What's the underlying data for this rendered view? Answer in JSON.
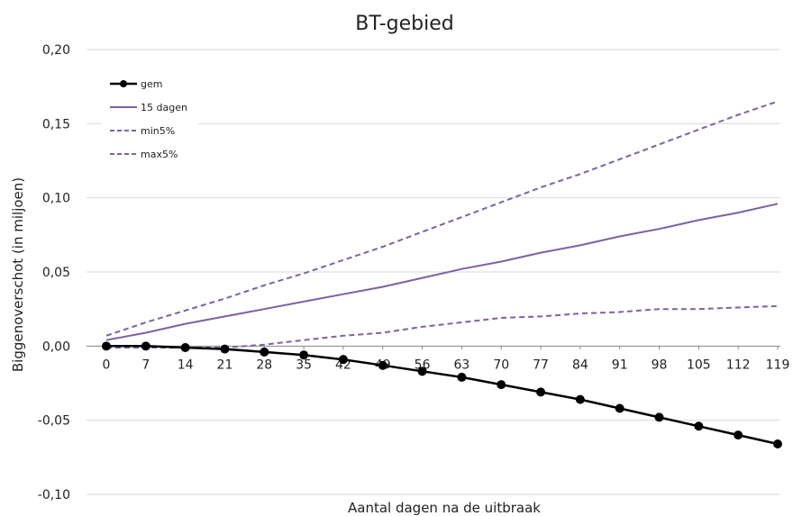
{
  "chart_data": {
    "type": "line",
    "title": "BT-gebied",
    "xlabel": "Aantal dagen na de uitbraak",
    "ylabel": "Biggenoverschot (in miljoen)",
    "x": [
      0,
      7,
      14,
      21,
      28,
      35,
      42,
      49,
      56,
      63,
      70,
      77,
      84,
      91,
      98,
      105,
      112,
      119
    ],
    "x_tick_labels": [
      "0",
      "7",
      "14",
      "21",
      "28",
      "35",
      "42",
      "49",
      "56",
      "63",
      "70",
      "77",
      "84",
      "91",
      "98",
      "105",
      "112",
      "119"
    ],
    "y_tick_labels": [
      "0,20",
      "0,15",
      "0,10",
      "0,05",
      "0,00",
      "-0,05",
      "-0,10"
    ],
    "y_ticks": [
      0.2,
      0.15,
      0.1,
      0.05,
      0.0,
      -0.05,
      -0.1
    ],
    "ylim": [
      -0.1,
      0.2
    ],
    "xlim": [
      0,
      119
    ],
    "grid": "horizontal",
    "legend_position": "top-left",
    "series": [
      {
        "name": "gem",
        "color": "#000000",
        "style": "solid-markers",
        "values": [
          0.0,
          0.0,
          -0.001,
          -0.002,
          -0.004,
          -0.006,
          -0.009,
          -0.013,
          -0.017,
          -0.021,
          -0.026,
          -0.031,
          -0.036,
          -0.042,
          -0.048,
          -0.054,
          -0.06,
          -0.066
        ]
      },
      {
        "name": "15 dagen",
        "color": "#7b62a3",
        "style": "solid",
        "values": [
          0.004,
          0.009,
          0.015,
          0.02,
          0.025,
          0.03,
          0.035,
          0.04,
          0.046,
          0.052,
          0.057,
          0.063,
          0.068,
          0.074,
          0.079,
          0.085,
          0.09,
          0.096
        ]
      },
      {
        "name": "min5%",
        "color": "#7b62a3",
        "style": "dashed",
        "values": [
          -0.001,
          -0.001,
          -0.001,
          -0.001,
          0.001,
          0.004,
          0.007,
          0.009,
          0.013,
          0.016,
          0.019,
          0.02,
          0.022,
          0.023,
          0.025,
          0.025,
          0.026,
          0.027
        ]
      },
      {
        "name": "max5%",
        "color": "#7b62a3",
        "style": "dashed",
        "values": [
          0.007,
          0.016,
          0.024,
          0.032,
          0.041,
          0.049,
          0.058,
          0.067,
          0.077,
          0.087,
          0.097,
          0.107,
          0.116,
          0.126,
          0.136,
          0.146,
          0.156,
          0.165
        ]
      }
    ]
  }
}
